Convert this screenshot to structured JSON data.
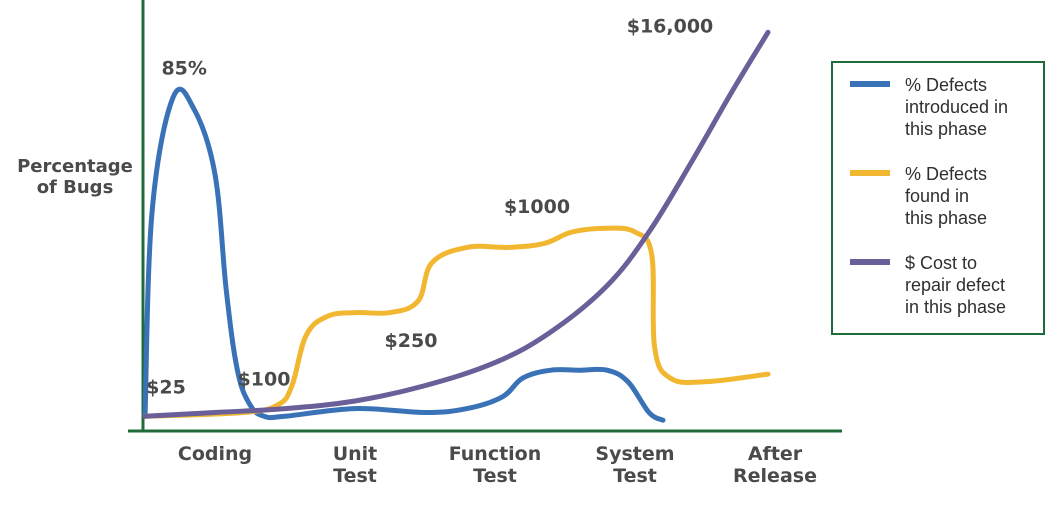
{
  "chart_data": {
    "type": "line",
    "title": "",
    "xlabel": "",
    "ylabel": "Percentage of Bugs",
    "ylabel_lines": [
      "Percentage",
      "of Bugs"
    ],
    "categories": [
      "Coding",
      "Unit Test",
      "Function Test",
      "System Test",
      "After Release"
    ],
    "categories_lines": [
      [
        "Coding"
      ],
      [
        "Unit",
        "Test"
      ],
      [
        "Function",
        "Test"
      ],
      [
        "System",
        "Test"
      ],
      [
        "After",
        "Release"
      ]
    ],
    "x_range": [
      0,
      4.6
    ],
    "y_range": [
      0,
      100
    ],
    "legend_position": "right",
    "series": [
      {
        "name": "% Defects introduced in this phase",
        "legend_lines": [
          "% Defects",
          "introduced in",
          "this phase"
        ],
        "color": "#3a72b8",
        "points": [
          [
            0.0,
            2
          ],
          [
            0.05,
            55
          ],
          [
            0.2,
            85
          ],
          [
            0.35,
            82
          ],
          [
            0.5,
            65
          ],
          [
            0.58,
            35
          ],
          [
            0.66,
            14
          ],
          [
            0.75,
            5
          ],
          [
            0.85,
            2
          ],
          [
            1.0,
            2
          ],
          [
            1.5,
            4
          ],
          [
            2.0,
            3
          ],
          [
            2.3,
            4
          ],
          [
            2.55,
            7
          ],
          [
            2.7,
            12
          ],
          [
            2.9,
            14
          ],
          [
            3.1,
            14
          ],
          [
            3.3,
            14
          ],
          [
            3.45,
            11
          ],
          [
            3.6,
            3
          ],
          [
            3.7,
            1
          ]
        ]
      },
      {
        "name": "% Defects found in this phase",
        "legend_lines": [
          "% Defects",
          "found in",
          "this phase"
        ],
        "color": "#f2b731",
        "points": [
          [
            0.0,
            2
          ],
          [
            0.7,
            3
          ],
          [
            0.95,
            5
          ],
          [
            1.05,
            10
          ],
          [
            1.15,
            23
          ],
          [
            1.3,
            28
          ],
          [
            1.5,
            29
          ],
          [
            1.75,
            29
          ],
          [
            1.95,
            32
          ],
          [
            2.05,
            42
          ],
          [
            2.3,
            46
          ],
          [
            2.6,
            46
          ],
          [
            2.85,
            47
          ],
          [
            3.05,
            50
          ],
          [
            3.3,
            51
          ],
          [
            3.5,
            50
          ],
          [
            3.62,
            44
          ],
          [
            3.64,
            20
          ],
          [
            3.75,
            12
          ],
          [
            4.0,
            11
          ],
          [
            4.45,
            13
          ]
        ]
      },
      {
        "name": "$ Cost to repair defect in this phase",
        "legend_lines": [
          "$ Cost to",
          "repair defect",
          "in this phase"
        ],
        "color": "#6a5f99",
        "points": [
          [
            0.0,
            2
          ],
          [
            0.5,
            3
          ],
          [
            1.0,
            4
          ],
          [
            1.5,
            6
          ],
          [
            2.0,
            10
          ],
          [
            2.5,
            16
          ],
          [
            2.9,
            24
          ],
          [
            3.3,
            36
          ],
          [
            3.6,
            50
          ],
          [
            3.9,
            68
          ],
          [
            4.2,
            87
          ],
          [
            4.45,
            102
          ]
        ]
      }
    ],
    "annotations": [
      {
        "text": "85%",
        "x": 0.28,
        "y": 91
      },
      {
        "text": "$25",
        "x": 0.15,
        "y": 8
      },
      {
        "text": "$100",
        "x": 0.85,
        "y": 10
      },
      {
        "text": "$250",
        "x": 1.9,
        "y": 20
      },
      {
        "text": "$1000",
        "x": 2.8,
        "y": 55
      },
      {
        "text": "$16,000",
        "x": 3.75,
        "y": 102
      }
    ]
  }
}
